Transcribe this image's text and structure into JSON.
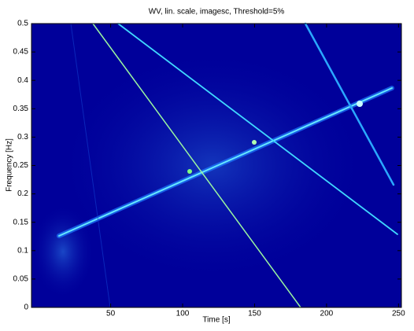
{
  "chart_data": {
    "type": "image",
    "title": "WV, lin. scale, imagesc, Threshold=5%",
    "xlabel": "Time [s]",
    "ylabel": "Frequency [Hz]",
    "xlim": [
      -5,
      252
    ],
    "ylim": [
      0,
      0.5
    ],
    "xticks": [
      50,
      100,
      150,
      200,
      250
    ],
    "yticks": [
      0,
      0.05,
      0.1,
      0.15,
      0.2,
      0.25,
      0.3,
      0.35,
      0.4,
      0.45,
      0.5
    ],
    "color": "#00009a"
  }
}
